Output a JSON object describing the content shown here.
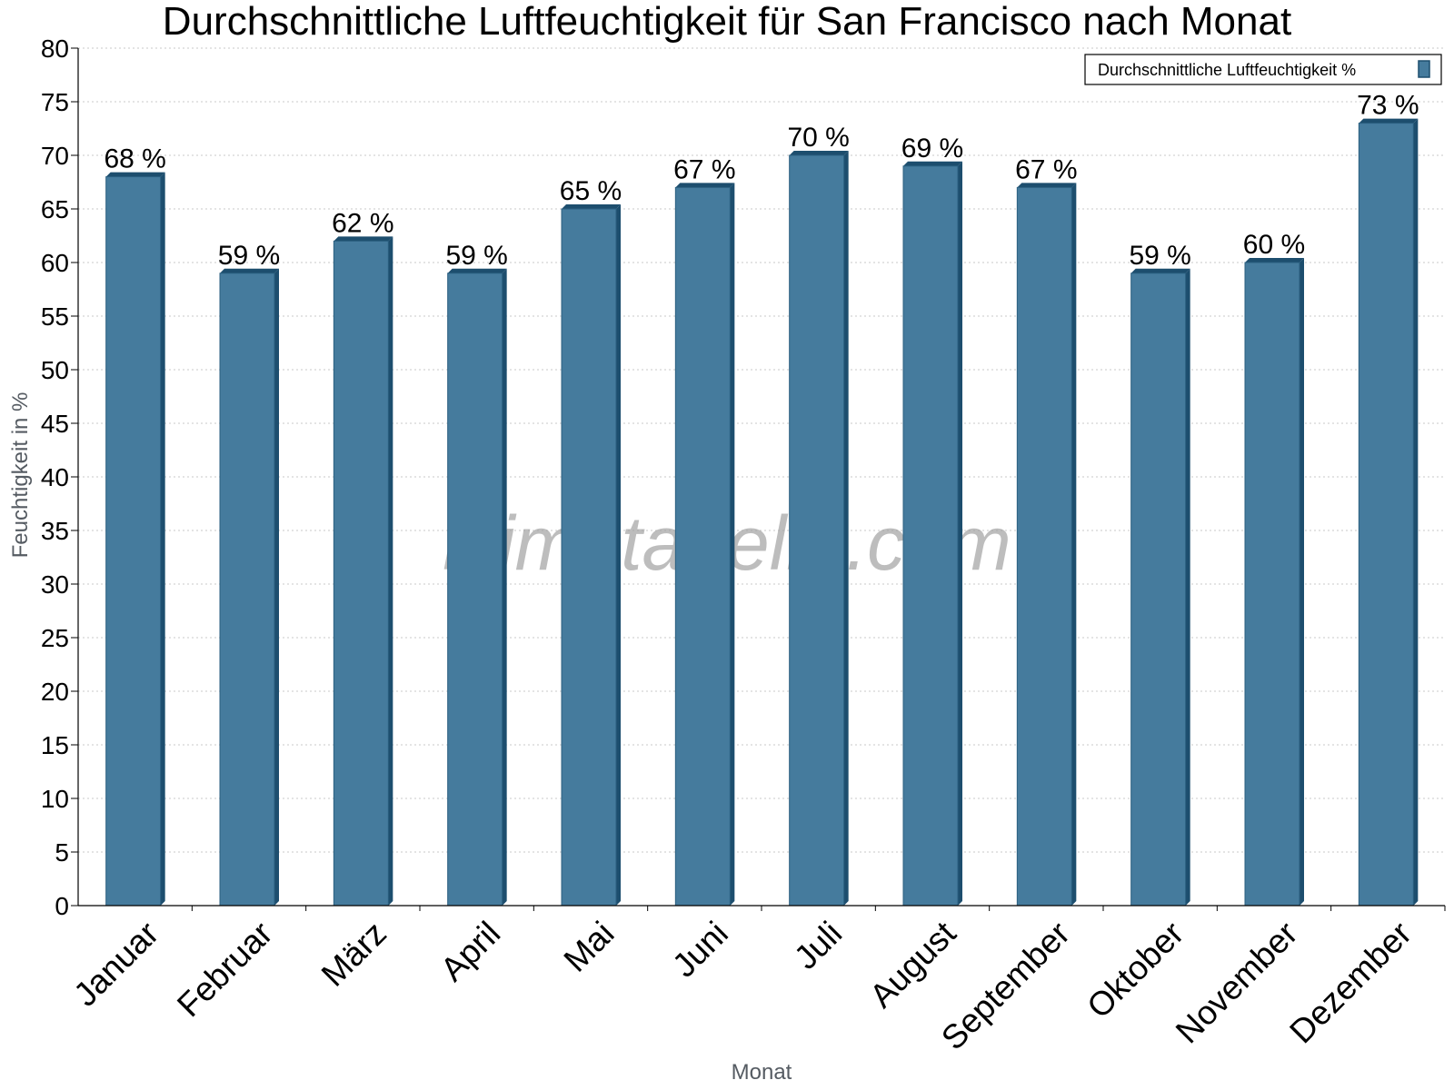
{
  "chart_data": {
    "type": "bar",
    "title": "Durchschnittliche Luftfeuchtigkeit für San Francisco nach Monat",
    "xlabel": "Monat",
    "ylabel": "Feuchtigkeit in %",
    "ylim": [
      0,
      80
    ],
    "ytick_step": 5,
    "grid": true,
    "legend_position": "top-right",
    "categories": [
      "Januar",
      "Februar",
      "März",
      "April",
      "Mai",
      "Juni",
      "Juli",
      "August",
      "September",
      "Oktober",
      "November",
      "Dezember"
    ],
    "series": [
      {
        "name": "Durchschnittliche Luftfeuchtigkeit %",
        "values": [
          68,
          59,
          62,
          59,
          65,
          67,
          70,
          69,
          67,
          59,
          60,
          73
        ],
        "labels": [
          "68 %",
          "59 %",
          "62 %",
          "59 %",
          "65 %",
          "67 %",
          "70 %",
          "69 %",
          "67 %",
          "59 %",
          "60 %",
          "73 %"
        ]
      }
    ],
    "watermark": "klimatabelle.com",
    "colors": {
      "bar": "#457b9d",
      "bar_dark": "#1d4e6e",
      "bar_edge": "#2b5f80",
      "grid": "#c8c8c8",
      "axis": "#000000"
    }
  }
}
